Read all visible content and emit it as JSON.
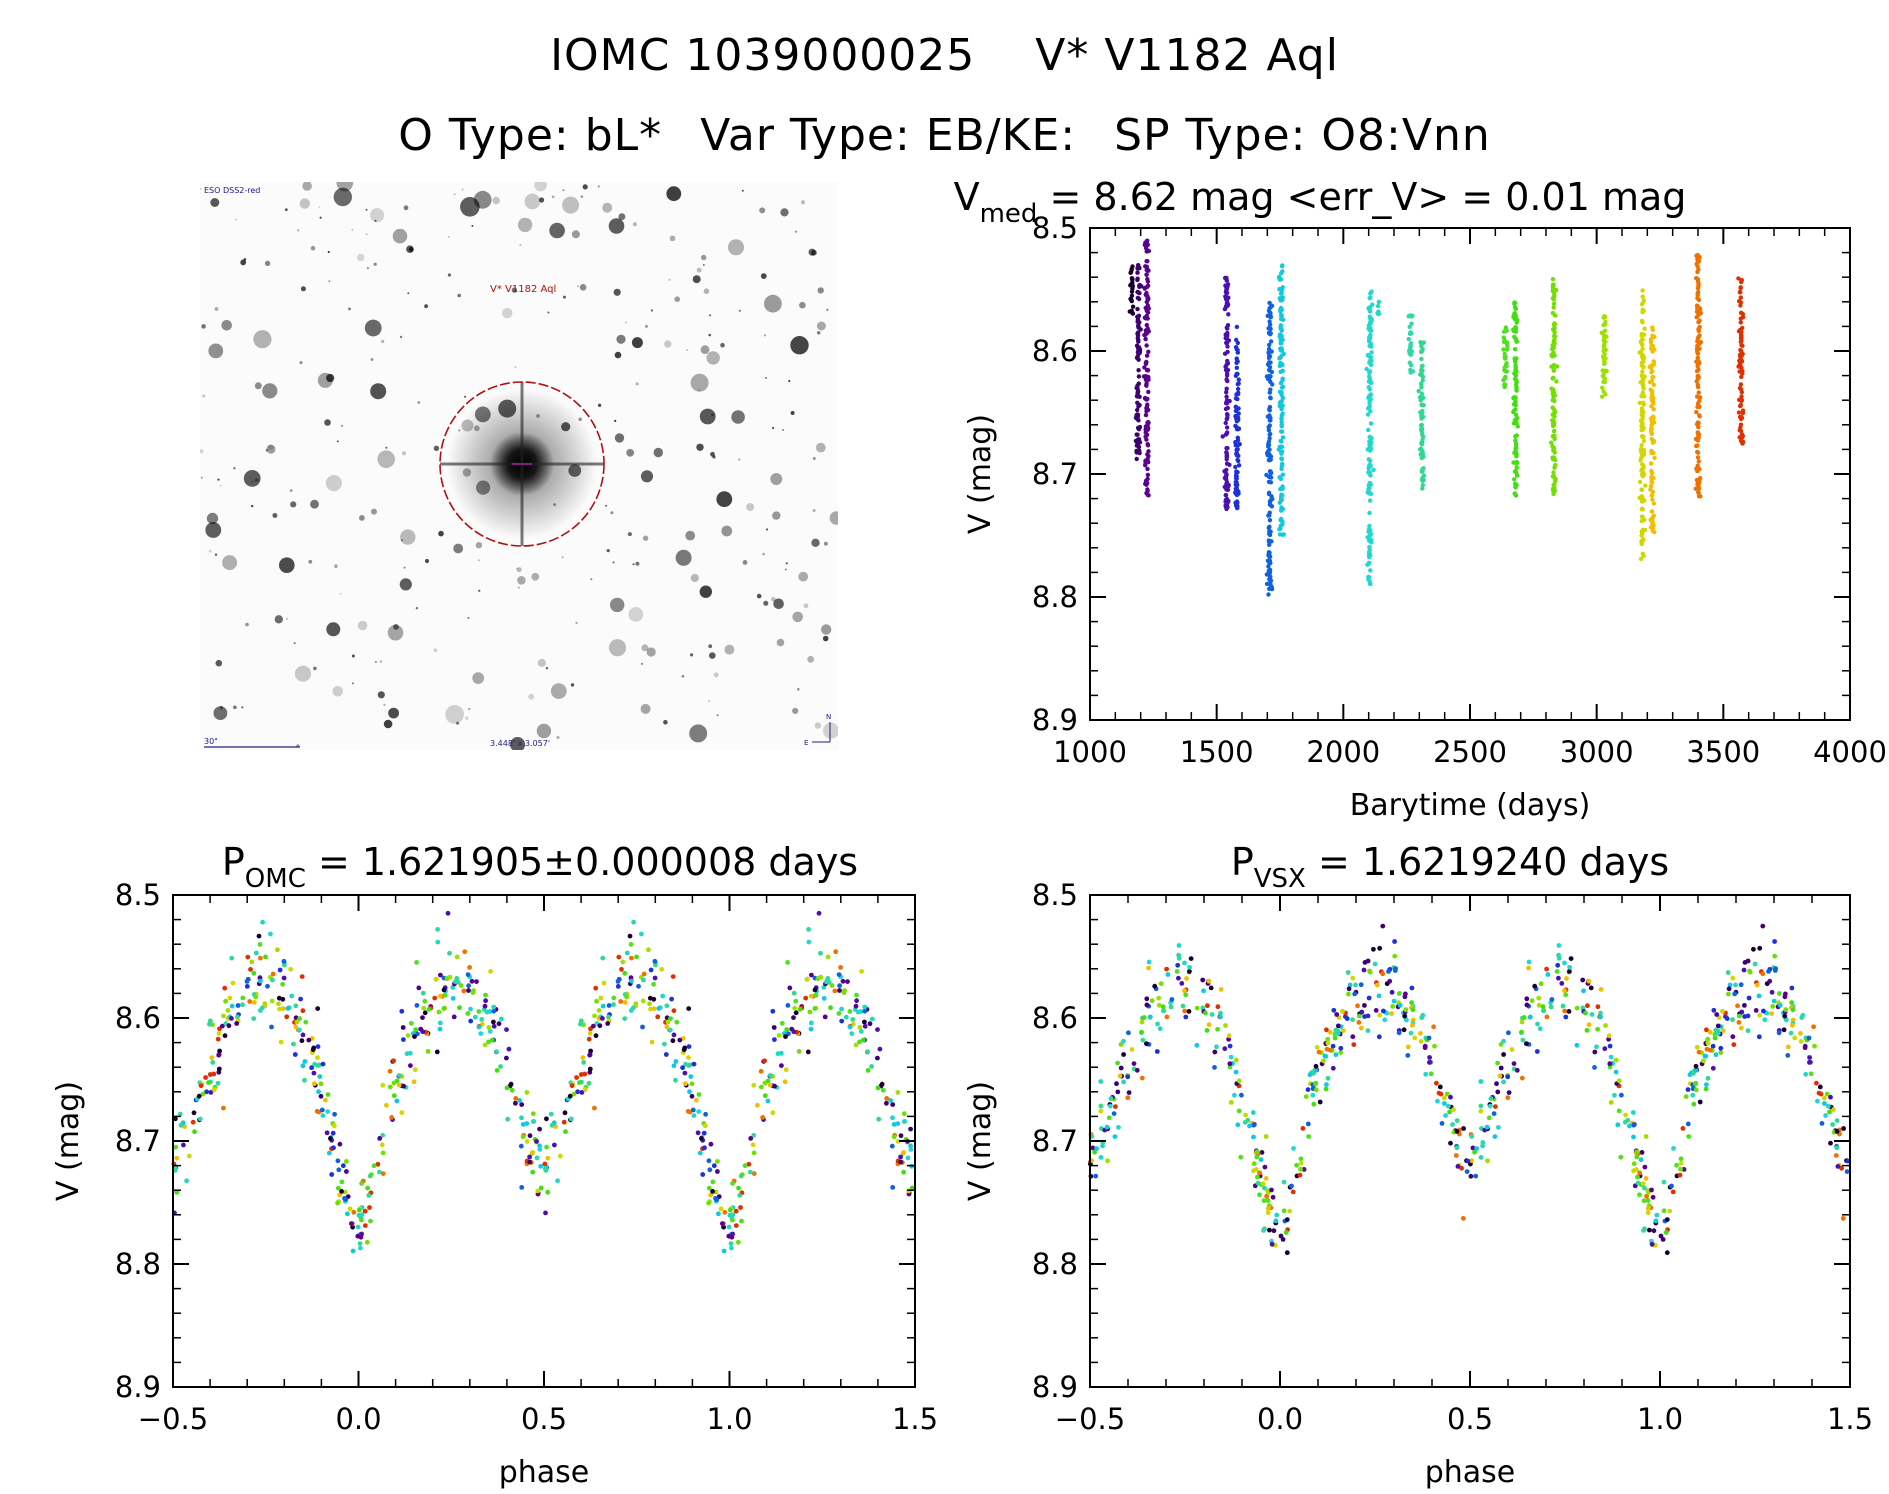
{
  "title": {
    "id_iomc": "IOMC 1039000025",
    "id_star": "V* V1182 Aql",
    "otype": "O Type: bL*",
    "vartype": "Var Type: EB/KE:",
    "sptype": "SP Type: O8:Vnn"
  },
  "finder": {
    "survey": "ESO DSS2-red",
    "target_label": "V* V1182 Aql",
    "scale_label": "30\"",
    "size_label": "3.448' x 3.057'",
    "north": "N",
    "east": "E"
  },
  "chart_data": [
    {
      "id": "lightcurve",
      "type": "scatter",
      "title_main": "V",
      "title_sub": "med",
      "title_rest": " = 8.62 mag <err_V> = 0.01 mag",
      "xlabel": "Barytime (days)",
      "ylabel": "V (mag)",
      "xlim": [
        1000,
        4000
      ],
      "ylim": [
        8.9,
        8.5
      ],
      "xticks": [
        "1000",
        "1500",
        "2000",
        "2500",
        "3000",
        "3500",
        "4000"
      ],
      "yticks": [
        "8.5",
        "8.6",
        "8.7",
        "8.8",
        "8.9"
      ],
      "groups": [
        {
          "t": 1165,
          "v_min": 8.53,
          "v_max": 8.57,
          "color": "#1a0030"
        },
        {
          "t": 1190,
          "v_min": 8.53,
          "v_max": 8.69,
          "color": "#3c0070"
        },
        {
          "t": 1225,
          "v_min": 8.51,
          "v_max": 8.72,
          "color": "#5a0090"
        },
        {
          "t": 1540,
          "v_min": 8.54,
          "v_max": 8.73,
          "color": "#4a10b0"
        },
        {
          "t": 1580,
          "v_min": 8.58,
          "v_max": 8.73,
          "color": "#2030d8"
        },
        {
          "t": 1710,
          "v_min": 8.56,
          "v_max": 8.8,
          "color": "#1060e0"
        },
        {
          "t": 1755,
          "v_min": 8.53,
          "v_max": 8.75,
          "color": "#10c8e0"
        },
        {
          "t": 2105,
          "v_min": 8.55,
          "v_max": 8.79,
          "color": "#20d8d0"
        },
        {
          "t": 2140,
          "v_min": 8.56,
          "v_max": 8.57,
          "color": "#20d8c0"
        },
        {
          "t": 2265,
          "v_min": 8.57,
          "v_max": 8.62,
          "color": "#30d8a8"
        },
        {
          "t": 2310,
          "v_min": 8.59,
          "v_max": 8.72,
          "color": "#30d890"
        },
        {
          "t": 2640,
          "v_min": 8.58,
          "v_max": 8.63,
          "color": "#50e020"
        },
        {
          "t": 2680,
          "v_min": 8.56,
          "v_max": 8.72,
          "color": "#40e010"
        },
        {
          "t": 2830,
          "v_min": 8.54,
          "v_max": 8.72,
          "color": "#70e000"
        },
        {
          "t": 3030,
          "v_min": 8.57,
          "v_max": 8.64,
          "color": "#a0e000"
        },
        {
          "t": 3180,
          "v_min": 8.55,
          "v_max": 8.77,
          "color": "#d0d800"
        },
        {
          "t": 3220,
          "v_min": 8.58,
          "v_max": 8.75,
          "color": "#f0c000"
        },
        {
          "t": 3400,
          "v_min": 8.52,
          "v_max": 8.72,
          "color": "#f07000"
        },
        {
          "t": 3570,
          "v_min": 8.54,
          "v_max": 8.68,
          "color": "#e03000"
        }
      ]
    },
    {
      "id": "phase_omc",
      "type": "scatter",
      "title_main": "P",
      "title_sub": "OMC",
      "title_rest": " = 1.621905±0.000008 days",
      "xlabel": "phase",
      "ylabel": "V (mag)",
      "xlim": [
        -0.5,
        1.5
      ],
      "ylim": [
        8.9,
        8.5
      ],
      "xticks": [
        "−0.5",
        "0.0",
        "0.5",
        "1.0",
        "1.5"
      ],
      "yticks": [
        "8.5",
        "8.6",
        "8.7",
        "8.8",
        "8.9"
      ],
      "curve_phase": [
        0.0,
        0.05,
        0.1,
        0.15,
        0.2,
        0.25,
        0.3,
        0.35,
        0.4,
        0.45,
        0.5,
        0.55,
        0.6,
        0.65,
        0.7,
        0.75,
        0.8,
        0.85,
        0.9,
        0.95,
        1.0
      ],
      "curve_mag": [
        8.78,
        8.72,
        8.65,
        8.61,
        8.58,
        8.57,
        8.58,
        8.6,
        8.64,
        8.69,
        8.72,
        8.68,
        8.64,
        8.6,
        8.58,
        8.57,
        8.58,
        8.61,
        8.66,
        8.73,
        8.78
      ]
    },
    {
      "id": "phase_vsx",
      "type": "scatter",
      "title_main": "P",
      "title_sub": "VSX",
      "title_rest": " = 1.6219240 days",
      "xlabel": "phase",
      "ylabel": "V (mag)",
      "xlim": [
        -0.5,
        1.5
      ],
      "ylim": [
        8.9,
        8.5
      ],
      "xticks": [
        "−0.5",
        "0.0",
        "0.5",
        "1.0",
        "1.5"
      ],
      "yticks": [
        "8.5",
        "8.6",
        "8.7",
        "8.8",
        "8.9"
      ],
      "curve_phase": [
        0.0,
        0.05,
        0.1,
        0.15,
        0.2,
        0.25,
        0.3,
        0.35,
        0.4,
        0.45,
        0.5,
        0.55,
        0.6,
        0.65,
        0.7,
        0.75,
        0.8,
        0.85,
        0.9,
        0.95,
        1.0
      ],
      "curve_mag": [
        8.78,
        8.72,
        8.65,
        8.61,
        8.58,
        8.57,
        8.58,
        8.6,
        8.64,
        8.69,
        8.72,
        8.68,
        8.64,
        8.6,
        8.58,
        8.57,
        8.58,
        8.61,
        8.66,
        8.73,
        8.78
      ]
    }
  ]
}
